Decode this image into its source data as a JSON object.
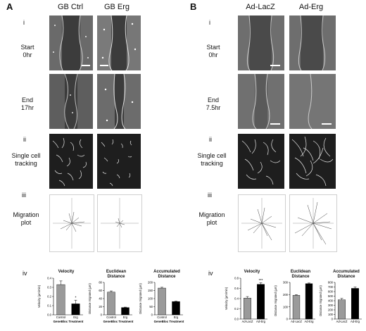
{
  "panels": {
    "A": {
      "letter": "A",
      "columns": [
        "GB Ctrl",
        "GB Erg"
      ],
      "labels": {
        "i": "i",
        "start": [
          "Start",
          "0hr"
        ],
        "end": [
          "End",
          "17hr"
        ],
        "ii": "ii",
        "tracking": [
          "Single cell",
          "tracking"
        ],
        "iii": "iii",
        "migration": [
          "Migration",
          "plot"
        ],
        "iv": "iv"
      }
    },
    "B": {
      "letter": "B",
      "columns": [
        "Ad-LacZ",
        "Ad-Erg"
      ],
      "labels": {
        "i": "i",
        "start": [
          "Start",
          "0hr"
        ],
        "end": [
          "End",
          "7.5hr"
        ],
        "ii": "ii",
        "tracking": [
          "Single cell",
          "tracking"
        ],
        "iii": "iii",
        "migration": [
          "Migration",
          "plot"
        ],
        "iv": "iv"
      }
    }
  },
  "colors": {
    "bar_control": "#9a9a9a",
    "bar_treated": "#000000"
  },
  "chart_data": [
    {
      "id": "A-velocity",
      "type": "bar",
      "title": "Velocity",
      "categories": [
        "Control",
        "Erg"
      ],
      "values": [
        0.33,
        0.12
      ],
      "errors": [
        0.04,
        0.04
      ],
      "ylabel": "Velocity (µm/min)",
      "xlabel": "GeneBloc Treatment",
      "ylim": [
        0,
        0.4
      ],
      "yticks": [
        "0.0",
        "0.1",
        "0.2",
        "0.3",
        "0.4"
      ],
      "ytickvals": [
        0,
        0.1,
        0.2,
        0.3,
        0.4
      ],
      "significance": [
        "",
        "*"
      ]
    },
    {
      "id": "A-euclidean",
      "type": "bar",
      "title": "Euclidean Distance",
      "categories": [
        "Control",
        "Erg"
      ],
      "values": [
        56,
        18
      ],
      "errors": [
        3,
        1
      ],
      "ylabel": "Distance migrated (µm)",
      "xlabel": "GeneBloc Treatment",
      "ylim": [
        0,
        80
      ],
      "yticks": [
        "0",
        "20",
        "40",
        "60",
        "80"
      ],
      "ytickvals": [
        0,
        20,
        40,
        60,
        80
      ],
      "significance": [
        "",
        ""
      ]
    },
    {
      "id": "A-accumulated",
      "type": "bar",
      "title": "Accumulated Distance",
      "categories": [
        "Control",
        "Erg"
      ],
      "values": [
        165,
        82
      ],
      "errors": [
        5,
        2
      ],
      "ylabel": "Distance migrated (µm)",
      "xlabel": "GeneBloc Treatment",
      "ylim": [
        0,
        200
      ],
      "yticks": [
        "0",
        "50",
        "100",
        "150",
        "200"
      ],
      "ytickvals": [
        0,
        50,
        100,
        150,
        200
      ],
      "significance": [
        "",
        ""
      ]
    },
    {
      "id": "B-velocity",
      "type": "bar",
      "title": "Velocity",
      "categories": [
        "Ad-LacZ",
        "Ad-Erg"
      ],
      "values": [
        0.41,
        0.68
      ],
      "errors": [
        0.03,
        0.03
      ],
      "ylabel": "Velocity (µm/min)",
      "xlabel": "",
      "ylim": [
        0,
        0.8
      ],
      "yticks": [
        "0.0",
        "0.2",
        "0.4",
        "0.6",
        "0.8"
      ],
      "ytickvals": [
        0,
        0.2,
        0.4,
        0.6,
        0.8
      ],
      "significance": [
        "",
        "***"
      ]
    },
    {
      "id": "B-euclidean",
      "type": "bar",
      "title": "Euclidean Distance",
      "categories": [
        "Ad-LacZ",
        "Ad-Erg"
      ],
      "values": [
        195,
        290
      ],
      "errors": [
        5,
        5
      ],
      "ylabel": "Distance migrated (µm)",
      "xlabel": "",
      "ylim": [
        0,
        300
      ],
      "yticks": [
        "0",
        "100",
        "200",
        "300"
      ],
      "ytickvals": [
        0,
        100,
        200,
        300
      ],
      "significance": [
        "",
        ""
      ]
    },
    {
      "id": "B-accumulated",
      "type": "bar",
      "title": "Accumulated Distance",
      "categories": [
        "Ad-LacZ",
        "Ad-Erg"
      ],
      "values": [
        420,
        670
      ],
      "errors": [
        30,
        30
      ],
      "ylabel": "Distance migrated (µm)",
      "xlabel": "",
      "ylim": [
        0,
        800
      ],
      "yticks": [
        "0",
        "100",
        "200",
        "300",
        "400",
        "500",
        "600",
        "700",
        "800"
      ],
      "ytickvals": [
        0,
        100,
        200,
        300,
        400,
        500,
        600,
        700,
        800
      ],
      "significance": [
        "",
        ""
      ]
    }
  ]
}
